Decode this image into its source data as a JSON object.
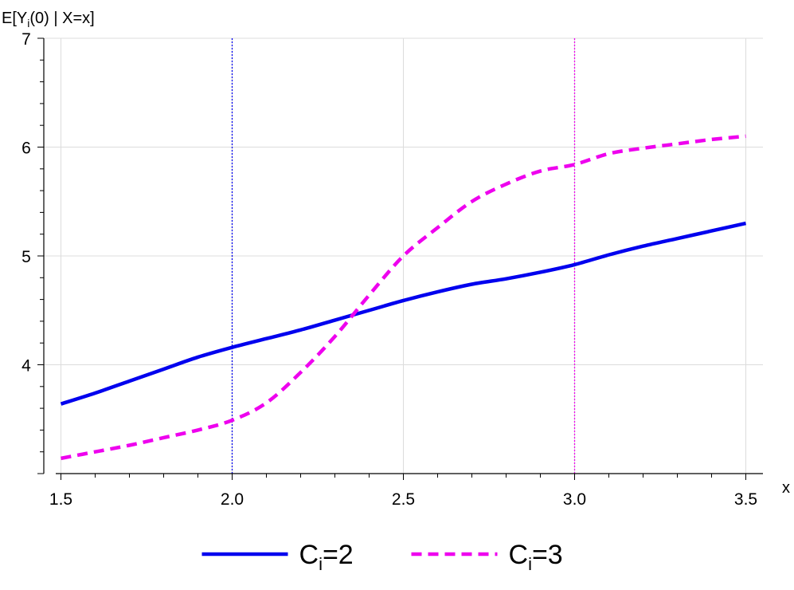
{
  "chart_data": {
    "type": "line",
    "xlabel": "x",
    "ylabel_parts": [
      "E[Y",
      "i",
      "(0) | X=x]"
    ],
    "xlim": [
      1.45,
      3.55
    ],
    "ylim": [
      3.0,
      7.0
    ],
    "x_ticks": [
      {
        "value": 1.5,
        "label": "1.5"
      },
      {
        "value": 2.0,
        "label": "2.0"
      },
      {
        "value": 2.5,
        "label": "2.5"
      },
      {
        "value": 3.0,
        "label": "3.0"
      },
      {
        "value": 3.5,
        "label": "3.5"
      }
    ],
    "y_ticks": [
      {
        "value": 4,
        "label": "4"
      },
      {
        "value": 5,
        "label": "5"
      },
      {
        "value": 6,
        "label": "6"
      },
      {
        "value": 7,
        "label": "7"
      }
    ],
    "grid": true,
    "series": [
      {
        "name_parts": [
          "C",
          "i",
          "=2"
        ],
        "color": "#0000ee",
        "style": "solid",
        "x": [
          1.5,
          1.6,
          1.7,
          1.8,
          1.9,
          2.0,
          2.1,
          2.2,
          2.3,
          2.4,
          2.5,
          2.6,
          2.7,
          2.8,
          2.9,
          3.0,
          3.1,
          3.2,
          3.3,
          3.4,
          3.5
        ],
        "y": [
          3.64,
          3.74,
          3.85,
          3.96,
          4.07,
          4.16,
          4.24,
          4.32,
          4.41,
          4.5,
          4.59,
          4.67,
          4.74,
          4.79,
          4.85,
          4.92,
          5.01,
          5.09,
          5.16,
          5.23,
          5.3
        ]
      },
      {
        "name_parts": [
          "C",
          "i",
          "=3"
        ],
        "color": "#ee00ee",
        "style": "dashed",
        "x": [
          1.5,
          1.6,
          1.7,
          1.8,
          1.9,
          2.0,
          2.1,
          2.2,
          2.3,
          2.4,
          2.5,
          2.6,
          2.7,
          2.8,
          2.9,
          3.0,
          3.1,
          3.2,
          3.3,
          3.4,
          3.5
        ],
        "y": [
          3.14,
          3.2,
          3.26,
          3.33,
          3.4,
          3.49,
          3.65,
          3.93,
          4.26,
          4.64,
          5.0,
          5.26,
          5.5,
          5.66,
          5.78,
          5.84,
          5.94,
          5.99,
          6.03,
          6.07,
          6.1
        ]
      }
    ],
    "vlines": [
      {
        "x": 2.0,
        "color": "#0000ee",
        "style": "dotted"
      },
      {
        "x": 3.0,
        "color": "#ee00ee",
        "style": "dotted"
      }
    ],
    "legend_position": "bottom-center"
  }
}
